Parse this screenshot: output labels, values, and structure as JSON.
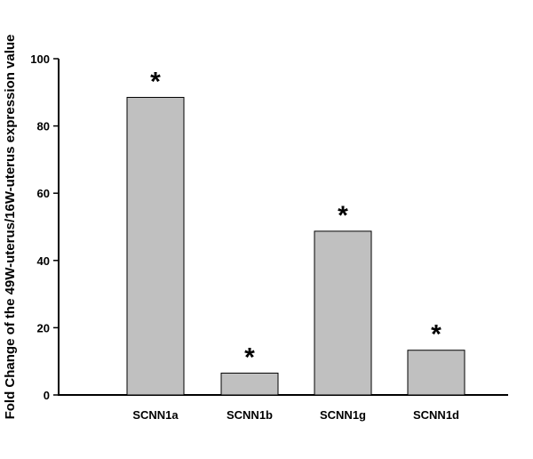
{
  "chart_data": {
    "type": "bar",
    "categories": [
      "SCNN1a",
      "SCNN1b",
      "SCNN1g",
      "SCNN1d"
    ],
    "values": [
      88.5,
      6.5,
      48.7,
      13.3
    ],
    "annotations": [
      "*",
      "*",
      "*",
      "*"
    ],
    "title": "",
    "xlabel": "",
    "ylabel": "Fold Change of the 49W-uterus/16W-uterus expression value",
    "ylim": [
      0,
      100
    ],
    "yticks": [
      0,
      20,
      40,
      60,
      80,
      100
    ],
    "bar_color": "#c0c0c0",
    "grid": false
  }
}
